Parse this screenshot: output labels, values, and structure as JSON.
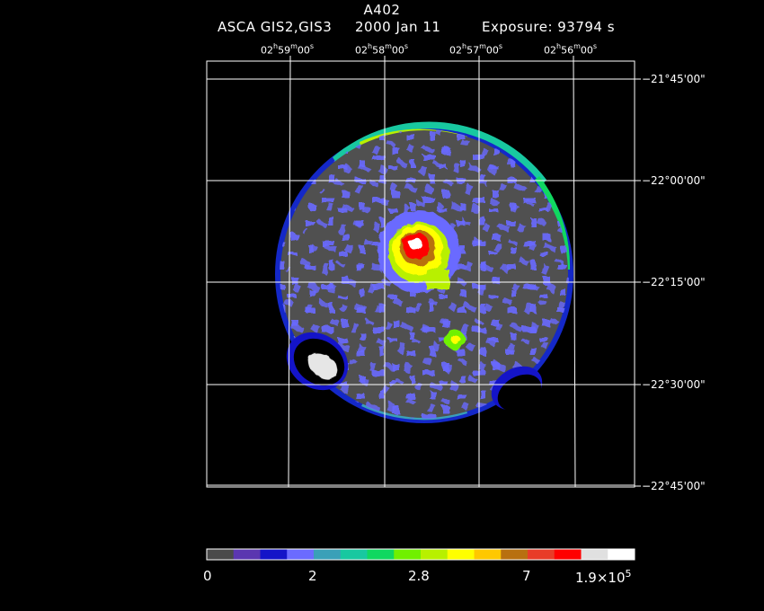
{
  "header": {
    "title": "A402",
    "instrument": "ASCA GIS2,GIS3",
    "date": "2000 Jan 11",
    "exposure": "Exposure: 93794 s"
  },
  "axes": {
    "ra_ticks": [
      {
        "h": "02",
        "m": "59",
        "s": "00"
      },
      {
        "h": "02",
        "m": "58",
        "s": "00"
      },
      {
        "h": "02",
        "m": "57",
        "s": "00"
      },
      {
        "h": "02",
        "m": "56",
        "s": "00"
      }
    ],
    "dec_ticks": [
      "−21°45'00\"",
      "−22°00'00\"",
      "−22°15'00\"",
      "−22°30'00\"",
      "−22°45'00\""
    ]
  },
  "colorbar": {
    "colors": [
      "#4a4a4a",
      "#5b36b0",
      "#1414c8",
      "#6b6bff",
      "#3aa0b8",
      "#18c8a0",
      "#10d860",
      "#70f000",
      "#b8f000",
      "#ffff00",
      "#ffc800",
      "#b87010",
      "#e83c28",
      "#ff0000",
      "#e0e0e0",
      "#ffffff"
    ],
    "labels": {
      "min": "0",
      "v2": "2",
      "v3": "2.8",
      "v4": "7",
      "max_mantissa": "1.9×10",
      "max_exp": "5"
    }
  }
}
